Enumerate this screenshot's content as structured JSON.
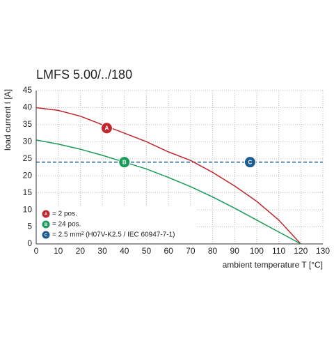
{
  "chart_data": {
    "type": "line",
    "title": "LMFS 5.00/../180",
    "x_label": "ambient temperature T [°C]",
    "y_label": "load current I [A]",
    "x": [
      0,
      10,
      20,
      30,
      40,
      50,
      60,
      70,
      80,
      90,
      100,
      110,
      120
    ],
    "series": [
      {
        "color": "#c0262d",
        "values": [
          40,
          39.2,
          37.5,
          35,
          32.5,
          30,
          27,
          24.5,
          21,
          17,
          12.5,
          7,
          0
        ]
      },
      {
        "color": "#1a9a5a",
        "values": [
          30.5,
          29.3,
          27.8,
          26,
          24,
          22,
          19.5,
          16.8,
          13.8,
          10.5,
          7,
          3.5,
          0
        ]
      }
    ],
    "reference_line": {
      "value": 24,
      "color": "#1c5b8e"
    },
    "markers": [
      {
        "label": "A",
        "x": 32,
        "y": 34,
        "color": "#c0262d"
      },
      {
        "label": "B",
        "x": 40,
        "y": 24,
        "color": "#1a9a5a"
      },
      {
        "label": "C",
        "x": 97,
        "y": 24,
        "color": "#1c5b8e"
      }
    ],
    "legend": [
      {
        "badge": "A",
        "text": "= 2 pos.",
        "color": "#c0262d"
      },
      {
        "badge": "B",
        "text": "= 24 pos.",
        "color": "#1a9a5a"
      },
      {
        "badge": "C",
        "text": "= 2.5 mm² (H07V-K2.5 / IEC 60947-7-1)",
        "color": "#1c5b8e"
      }
    ],
    "xlim": [
      0,
      130
    ],
    "ylim": [
      0,
      45
    ],
    "xticks": [
      0,
      10,
      20,
      30,
      40,
      50,
      60,
      70,
      80,
      90,
      100,
      110,
      120,
      130
    ],
    "yticks": [
      0,
      5,
      10,
      15,
      20,
      25,
      30,
      35,
      40,
      45
    ],
    "grid": true
  }
}
